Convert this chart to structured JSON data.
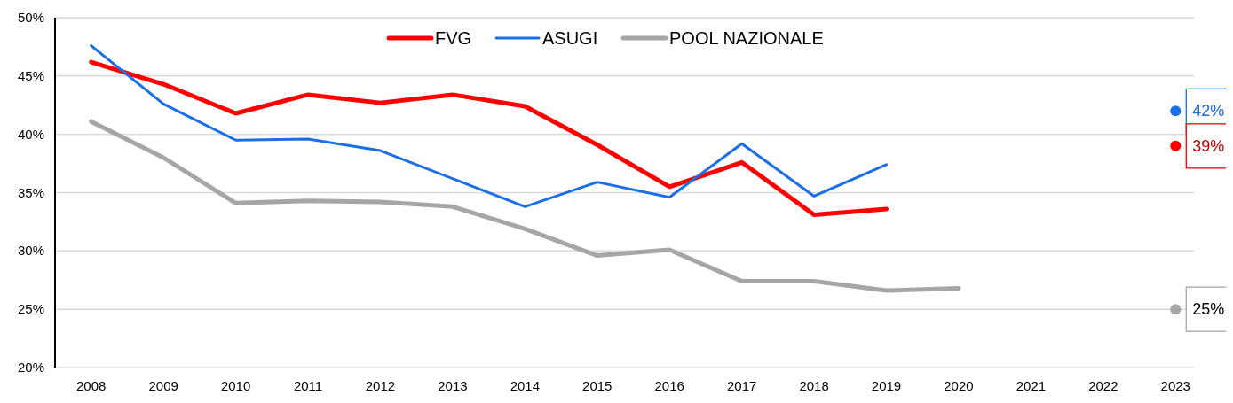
{
  "chart_data": {
    "type": "line",
    "categories": [
      "2008",
      "2009",
      "2010",
      "2011",
      "2012",
      "2013",
      "2014",
      "2015",
      "2016",
      "2017",
      "2018",
      "2019",
      "2020",
      "2021",
      "2022",
      "2023"
    ],
    "ylim": [
      20,
      50
    ],
    "yticks": [
      {
        "value": 20,
        "label": "20%"
      },
      {
        "value": 25,
        "label": "25%"
      },
      {
        "value": 30,
        "label": "30%"
      },
      {
        "value": 35,
        "label": "35%"
      },
      {
        "value": 40,
        "label": "40%"
      },
      {
        "value": 45,
        "label": "45%"
      },
      {
        "value": 50,
        "label": "50%"
      }
    ],
    "grid": "y",
    "legend": "top",
    "series": [
      {
        "name": "FVG",
        "color": "#ff0000",
        "values": [
          46.2,
          44.3,
          41.8,
          43.4,
          42.7,
          43.4,
          42.4,
          39.1,
          35.5,
          37.6,
          33.1,
          33.6,
          null,
          null,
          null,
          null
        ]
      },
      {
        "name": "ASUGI",
        "color": "#1a6ee6",
        "values": [
          47.6,
          42.6,
          39.5,
          39.6,
          38.6,
          36.2,
          33.8,
          35.9,
          34.6,
          39.2,
          34.7,
          37.4,
          null,
          null,
          null,
          null
        ]
      },
      {
        "name": "POOL NAZIONALE",
        "color": "#a6a6a6",
        "values": [
          41.1,
          38.0,
          34.1,
          34.3,
          34.2,
          33.8,
          31.9,
          29.6,
          30.1,
          27.4,
          27.4,
          26.6,
          26.8,
          null,
          null,
          null
        ]
      },
      {
        "type": "scatter",
        "color": "#1a6ee6",
        "values": [
          null,
          null,
          null,
          null,
          null,
          null,
          null,
          null,
          null,
          null,
          null,
          null,
          null,
          null,
          null,
          42
        ],
        "value_labels": [
          null,
          null,
          null,
          null,
          null,
          null,
          null,
          null,
          null,
          null,
          null,
          null,
          null,
          null,
          null,
          "42%"
        ]
      },
      {
        "type": "scatter",
        "color": "#ff0000",
        "values": [
          null,
          null,
          null,
          null,
          null,
          null,
          null,
          null,
          null,
          null,
          null,
          null,
          null,
          null,
          null,
          39
        ],
        "value_labels": [
          null,
          null,
          null,
          null,
          null,
          null,
          null,
          null,
          null,
          null,
          null,
          null,
          null,
          null,
          null,
          "39%"
        ]
      },
      {
        "type": "scatter",
        "color": "#a6a6a6",
        "values": [
          null,
          null,
          null,
          null,
          null,
          null,
          null,
          null,
          null,
          null,
          null,
          null,
          null,
          null,
          null,
          25
        ],
        "value_labels": [
          null,
          null,
          null,
          null,
          null,
          null,
          null,
          null,
          null,
          null,
          null,
          null,
          null,
          null,
          null,
          "25%"
        ]
      }
    ]
  }
}
